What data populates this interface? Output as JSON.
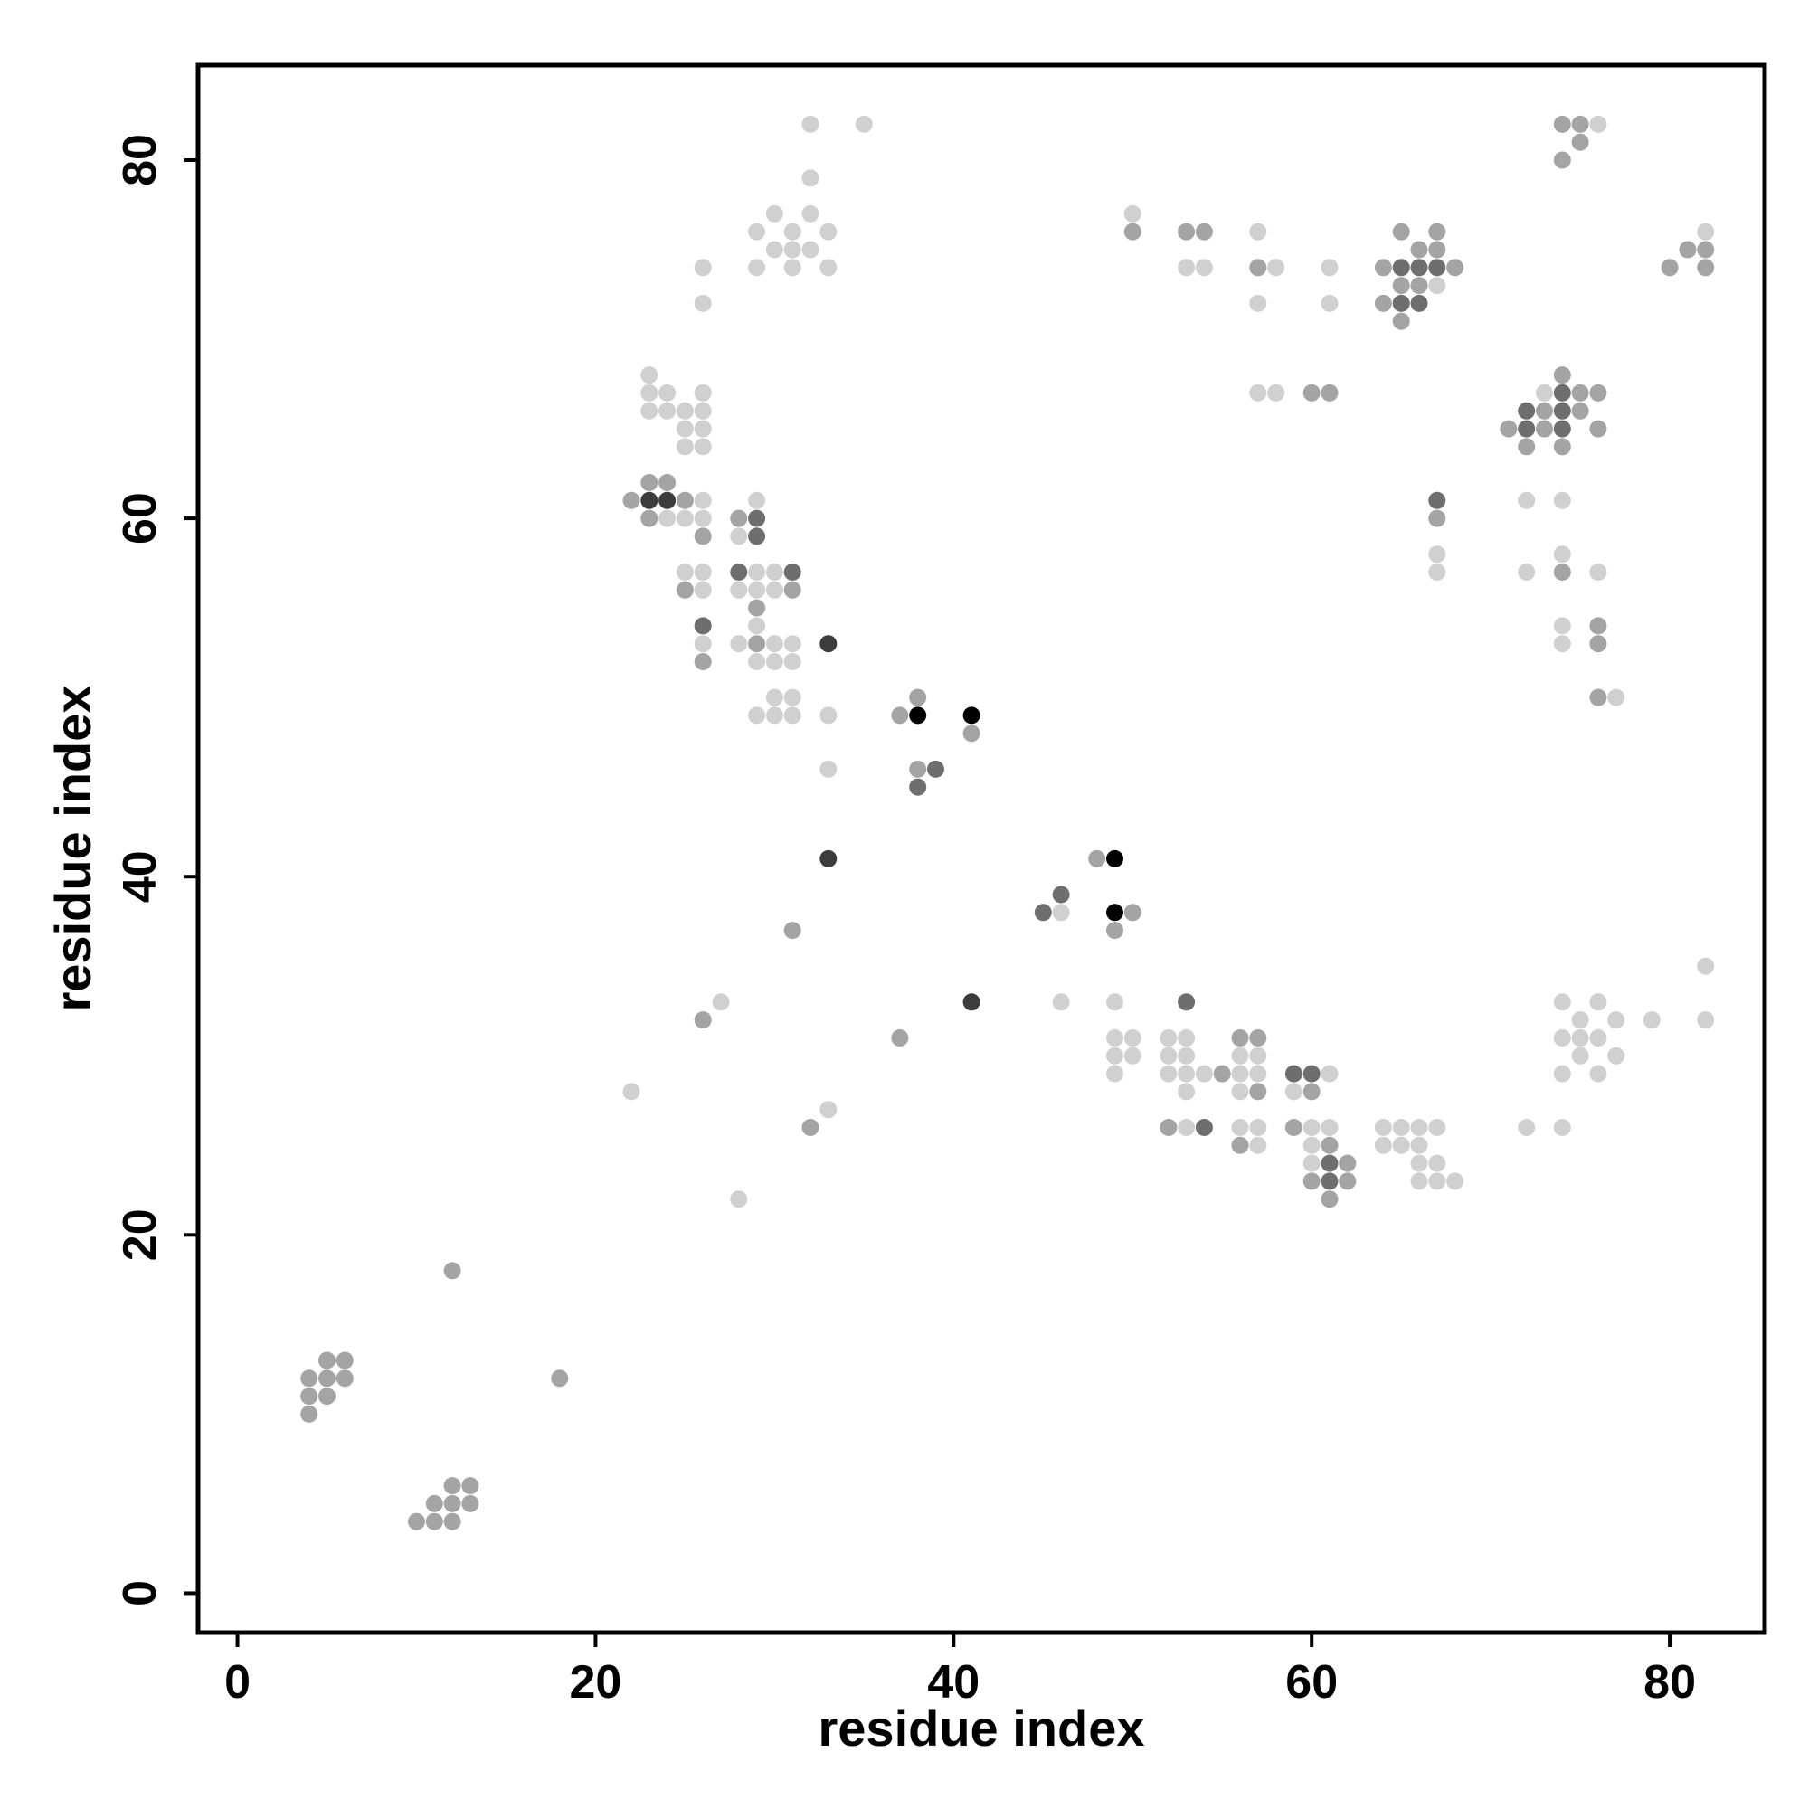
{
  "chart_data": {
    "type": "scatter",
    "title": "",
    "xlabel": "residue index",
    "ylabel": "residue index",
    "xlim": [
      -2.2,
      85.3
    ],
    "ylim": [
      -2.2,
      85.3
    ],
    "xticks": [
      0,
      20,
      40,
      60,
      80
    ],
    "yticks": [
      0,
      20,
      40,
      60,
      80
    ],
    "grid": false,
    "legend": "none",
    "colors": {
      "black": "#000000",
      "dark": "#3c3c3c",
      "mid_dark": "#6e6e6e",
      "mid": "#a4a4a4",
      "light": "#d0d0d0"
    },
    "points": [
      [
        4,
        12,
        "mid"
      ],
      [
        5,
        12,
        "mid"
      ],
      [
        6,
        12,
        "mid"
      ],
      [
        5,
        13,
        "mid"
      ],
      [
        6,
        13,
        "mid"
      ],
      [
        4,
        11,
        "mid"
      ],
      [
        5,
        11,
        "mid"
      ],
      [
        4,
        10,
        "mid"
      ],
      [
        10,
        4,
        "mid"
      ],
      [
        11,
        4,
        "mid"
      ],
      [
        12,
        4,
        "mid"
      ],
      [
        11,
        5,
        "mid"
      ],
      [
        12,
        5,
        "mid"
      ],
      [
        13,
        5,
        "mid"
      ],
      [
        12,
        6,
        "mid"
      ],
      [
        13,
        6,
        "mid"
      ],
      [
        12,
        18,
        "mid"
      ],
      [
        18,
        12,
        "mid"
      ],
      [
        22,
        28,
        "light"
      ],
      [
        28,
        22,
        "light"
      ],
      [
        26,
        32,
        "mid"
      ],
      [
        27,
        33,
        "light"
      ],
      [
        31,
        37,
        "mid"
      ],
      [
        32,
        26,
        "mid"
      ],
      [
        33,
        27,
        "light"
      ],
      [
        37,
        31,
        "mid"
      ],
      [
        33,
        41,
        "dark"
      ],
      [
        41,
        33,
        "dark"
      ],
      [
        22,
        61,
        "mid"
      ],
      [
        23,
        61,
        "dark"
      ],
      [
        24,
        61,
        "dark"
      ],
      [
        25,
        61,
        "mid"
      ],
      [
        26,
        61,
        "light"
      ],
      [
        23,
        62,
        "mid"
      ],
      [
        24,
        62,
        "mid"
      ],
      [
        23,
        60,
        "mid"
      ],
      [
        24,
        60,
        "light"
      ],
      [
        25,
        60,
        "light"
      ],
      [
        26,
        60,
        "light"
      ],
      [
        26,
        59,
        "mid"
      ],
      [
        23,
        68,
        "light"
      ],
      [
        23,
        67,
        "light"
      ],
      [
        24,
        67,
        "light"
      ],
      [
        26,
        67,
        "light"
      ],
      [
        23,
        66,
        "light"
      ],
      [
        24,
        66,
        "light"
      ],
      [
        25,
        66,
        "light"
      ],
      [
        26,
        66,
        "light"
      ],
      [
        25,
        65,
        "light"
      ],
      [
        26,
        65,
        "light"
      ],
      [
        25,
        64,
        "light"
      ],
      [
        26,
        64,
        "light"
      ],
      [
        26,
        74,
        "light"
      ],
      [
        26,
        72,
        "light"
      ],
      [
        25,
        57,
        "light"
      ],
      [
        26,
        57,
        "light"
      ],
      [
        25,
        56,
        "mid"
      ],
      [
        26,
        56,
        "light"
      ],
      [
        26,
        54,
        "mid_dark"
      ],
      [
        26,
        53,
        "light"
      ],
      [
        26,
        52,
        "mid"
      ],
      [
        28,
        60,
        "mid"
      ],
      [
        29,
        60,
        "mid_dark"
      ],
      [
        29,
        61,
        "light"
      ],
      [
        28,
        59,
        "light"
      ],
      [
        29,
        59,
        "mid_dark"
      ],
      [
        28,
        57,
        "mid_dark"
      ],
      [
        29,
        57,
        "light"
      ],
      [
        30,
        57,
        "light"
      ],
      [
        31,
        57,
        "mid_dark"
      ],
      [
        28,
        56,
        "light"
      ],
      [
        29,
        56,
        "light"
      ],
      [
        30,
        56,
        "light"
      ],
      [
        31,
        56,
        "mid"
      ],
      [
        29,
        55,
        "mid"
      ],
      [
        29,
        54,
        "light"
      ],
      [
        28,
        53,
        "light"
      ],
      [
        29,
        53,
        "mid"
      ],
      [
        30,
        53,
        "light"
      ],
      [
        31,
        53,
        "light"
      ],
      [
        29,
        52,
        "light"
      ],
      [
        30,
        52,
        "light"
      ],
      [
        31,
        52,
        "light"
      ],
      [
        30,
        50,
        "light"
      ],
      [
        31,
        50,
        "light"
      ],
      [
        29,
        49,
        "light"
      ],
      [
        30,
        49,
        "light"
      ],
      [
        31,
        49,
        "light"
      ],
      [
        33,
        53,
        "dark"
      ],
      [
        33,
        49,
        "light"
      ],
      [
        33,
        46,
        "light"
      ],
      [
        32,
        82,
        "light"
      ],
      [
        35,
        82,
        "light"
      ],
      [
        32,
        79,
        "light"
      ],
      [
        30,
        77,
        "light"
      ],
      [
        32,
        77,
        "light"
      ],
      [
        29,
        76,
        "light"
      ],
      [
        31,
        76,
        "light"
      ],
      [
        33,
        76,
        "light"
      ],
      [
        30,
        75,
        "light"
      ],
      [
        31,
        75,
        "light"
      ],
      [
        32,
        75,
        "light"
      ],
      [
        29,
        74,
        "light"
      ],
      [
        31,
        74,
        "light"
      ],
      [
        33,
        74,
        "light"
      ],
      [
        37,
        49,
        "mid"
      ],
      [
        38,
        49,
        "black"
      ],
      [
        38,
        50,
        "mid"
      ],
      [
        41,
        49,
        "black"
      ],
      [
        41,
        48,
        "mid"
      ],
      [
        38,
        46,
        "mid"
      ],
      [
        39,
        46,
        "mid_dark"
      ],
      [
        38,
        45,
        "mid_dark"
      ],
      [
        45,
        38,
        "mid_dark"
      ],
      [
        46,
        38,
        "light"
      ],
      [
        46,
        39,
        "mid_dark"
      ],
      [
        48,
        41,
        "mid"
      ],
      [
        49,
        41,
        "black"
      ],
      [
        49,
        38,
        "black"
      ],
      [
        50,
        38,
        "mid"
      ],
      [
        49,
        37,
        "mid"
      ],
      [
        46,
        33,
        "light"
      ],
      [
        49,
        33,
        "light"
      ],
      [
        53,
        33,
        "mid_dark"
      ],
      [
        49,
        31,
        "light"
      ],
      [
        50,
        31,
        "light"
      ],
      [
        49,
        30,
        "light"
      ],
      [
        50,
        30,
        "light"
      ],
      [
        49,
        29,
        "light"
      ],
      [
        52,
        31,
        "light"
      ],
      [
        53,
        31,
        "light"
      ],
      [
        52,
        30,
        "light"
      ],
      [
        53,
        30,
        "light"
      ],
      [
        52,
        29,
        "light"
      ],
      [
        53,
        29,
        "light"
      ],
      [
        54,
        29,
        "light"
      ],
      [
        53,
        28,
        "light"
      ],
      [
        55,
        29,
        "mid"
      ],
      [
        52,
        26,
        "mid"
      ],
      [
        53,
        26,
        "light"
      ],
      [
        54,
        26,
        "mid_dark"
      ],
      [
        56,
        31,
        "mid"
      ],
      [
        57,
        31,
        "mid"
      ],
      [
        56,
        30,
        "light"
      ],
      [
        57,
        30,
        "light"
      ],
      [
        56,
        29,
        "light"
      ],
      [
        57,
        29,
        "light"
      ],
      [
        56,
        28,
        "light"
      ],
      [
        57,
        28,
        "mid"
      ],
      [
        56,
        26,
        "light"
      ],
      [
        57,
        26,
        "light"
      ],
      [
        56,
        25,
        "mid"
      ],
      [
        57,
        25,
        "light"
      ],
      [
        59,
        29,
        "mid_dark"
      ],
      [
        60,
        29,
        "mid_dark"
      ],
      [
        61,
        29,
        "light"
      ],
      [
        59,
        28,
        "light"
      ],
      [
        60,
        28,
        "mid"
      ],
      [
        59,
        26,
        "mid"
      ],
      [
        60,
        26,
        "light"
      ],
      [
        61,
        26,
        "light"
      ],
      [
        60,
        25,
        "light"
      ],
      [
        61,
        25,
        "mid"
      ],
      [
        60,
        24,
        "light"
      ],
      [
        61,
        24,
        "mid_dark"
      ],
      [
        62,
        24,
        "mid"
      ],
      [
        60,
        23,
        "mid"
      ],
      [
        61,
        23,
        "mid_dark"
      ],
      [
        62,
        23,
        "mid"
      ],
      [
        61,
        22,
        "mid"
      ],
      [
        64,
        26,
        "light"
      ],
      [
        65,
        26,
        "light"
      ],
      [
        66,
        26,
        "light"
      ],
      [
        67,
        26,
        "light"
      ],
      [
        64,
        25,
        "light"
      ],
      [
        65,
        25,
        "light"
      ],
      [
        66,
        25,
        "light"
      ],
      [
        66,
        24,
        "light"
      ],
      [
        67,
        24,
        "light"
      ],
      [
        66,
        23,
        "light"
      ],
      [
        67,
        23,
        "light"
      ],
      [
        68,
        23,
        "light"
      ],
      [
        72,
        26,
        "light"
      ],
      [
        74,
        26,
        "light"
      ],
      [
        74,
        33,
        "light"
      ],
      [
        76,
        33,
        "light"
      ],
      [
        75,
        32,
        "light"
      ],
      [
        77,
        32,
        "light"
      ],
      [
        79,
        32,
        "light"
      ],
      [
        82,
        32,
        "light"
      ],
      [
        82,
        35,
        "light"
      ],
      [
        74,
        31,
        "light"
      ],
      [
        75,
        31,
        "light"
      ],
      [
        76,
        31,
        "light"
      ],
      [
        75,
        30,
        "light"
      ],
      [
        77,
        30,
        "light"
      ],
      [
        74,
        29,
        "light"
      ],
      [
        76,
        29,
        "light"
      ],
      [
        50,
        77,
        "light"
      ],
      [
        50,
        76,
        "mid"
      ],
      [
        53,
        76,
        "mid"
      ],
      [
        54,
        76,
        "mid"
      ],
      [
        53,
        74,
        "light"
      ],
      [
        54,
        74,
        "light"
      ],
      [
        57,
        76,
        "light"
      ],
      [
        57,
        74,
        "mid"
      ],
      [
        58,
        74,
        "light"
      ],
      [
        57,
        72,
        "light"
      ],
      [
        61,
        74,
        "light"
      ],
      [
        61,
        72,
        "light"
      ],
      [
        57,
        67,
        "light"
      ],
      [
        58,
        67,
        "light"
      ],
      [
        60,
        67,
        "mid"
      ],
      [
        61,
        67,
        "mid"
      ],
      [
        65,
        76,
        "mid"
      ],
      [
        67,
        76,
        "mid"
      ],
      [
        66,
        75,
        "mid"
      ],
      [
        67,
        75,
        "mid"
      ],
      [
        64,
        74,
        "mid"
      ],
      [
        65,
        74,
        "mid_dark"
      ],
      [
        66,
        74,
        "mid_dark"
      ],
      [
        67,
        74,
        "mid_dark"
      ],
      [
        68,
        74,
        "mid"
      ],
      [
        65,
        73,
        "mid"
      ],
      [
        66,
        73,
        "mid"
      ],
      [
        67,
        73,
        "light"
      ],
      [
        64,
        72,
        "mid"
      ],
      [
        65,
        72,
        "mid_dark"
      ],
      [
        66,
        72,
        "mid_dark"
      ],
      [
        65,
        71,
        "mid"
      ],
      [
        67,
        61,
        "mid_dark"
      ],
      [
        67,
        60,
        "mid"
      ],
      [
        67,
        58,
        "light"
      ],
      [
        67,
        57,
        "light"
      ],
      [
        74,
        82,
        "mid"
      ],
      [
        75,
        82,
        "mid"
      ],
      [
        76,
        82,
        "light"
      ],
      [
        75,
        81,
        "mid"
      ],
      [
        74,
        80,
        "mid"
      ],
      [
        80,
        74,
        "mid"
      ],
      [
        81,
        75,
        "mid"
      ],
      [
        82,
        75,
        "mid"
      ],
      [
        82,
        76,
        "light"
      ],
      [
        82,
        74,
        "mid"
      ],
      [
        74,
        68,
        "mid"
      ],
      [
        73,
        67,
        "light"
      ],
      [
        74,
        67,
        "mid_dark"
      ],
      [
        75,
        67,
        "mid"
      ],
      [
        76,
        67,
        "mid"
      ],
      [
        72,
        66,
        "mid_dark"
      ],
      [
        73,
        66,
        "mid"
      ],
      [
        74,
        66,
        "mid_dark"
      ],
      [
        75,
        66,
        "mid"
      ],
      [
        71,
        65,
        "mid"
      ],
      [
        72,
        65,
        "mid_dark"
      ],
      [
        73,
        65,
        "mid"
      ],
      [
        74,
        65,
        "mid_dark"
      ],
      [
        76,
        65,
        "mid"
      ],
      [
        72,
        64,
        "mid"
      ],
      [
        74,
        64,
        "mid"
      ],
      [
        72,
        61,
        "light"
      ],
      [
        74,
        61,
        "light"
      ],
      [
        74,
        58,
        "light"
      ],
      [
        72,
        57,
        "light"
      ],
      [
        74,
        57,
        "mid"
      ],
      [
        76,
        57,
        "light"
      ],
      [
        74,
        54,
        "light"
      ],
      [
        76,
        54,
        "mid"
      ],
      [
        74,
        53,
        "light"
      ],
      [
        76,
        53,
        "mid"
      ],
      [
        76,
        50,
        "mid"
      ],
      [
        77,
        50,
        "light"
      ]
    ]
  }
}
